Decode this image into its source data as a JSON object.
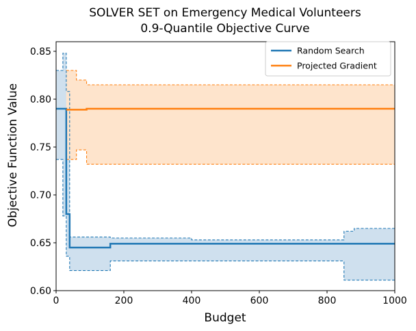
{
  "chart_data": {
    "type": "line",
    "title": "SOLVER SET on Emergency Medical Volunteers",
    "subtitle": "0.9-Quantile Objective Curve",
    "xlabel": "Budget",
    "ylabel": "Objective Function Value",
    "xlim": [
      0,
      1000
    ],
    "ylim": [
      0.6,
      0.86
    ],
    "xticks": [
      0,
      200,
      400,
      600,
      800,
      1000
    ],
    "yticks": [
      0.6,
      0.65,
      0.7,
      0.75,
      0.8,
      0.85
    ],
    "xtick_labels": [
      "0",
      "200",
      "400",
      "600",
      "800",
      "1000"
    ],
    "ytick_labels": [
      "0.60",
      "0.65",
      "0.70",
      "0.75",
      "0.80",
      "0.85"
    ],
    "grid": false,
    "legend_position": "top-right",
    "line_style": "step",
    "series": [
      {
        "name": "Random Search",
        "color": "#1f77b4",
        "fill": "#cfe0ee",
        "x": [
          0,
          30,
          40,
          160,
          1000
        ],
        "y": [
          0.79,
          0.68,
          0.645,
          0.649,
          0.649
        ],
        "ci_x": [
          0,
          20,
          30,
          40,
          160,
          400,
          850,
          880,
          1000
        ],
        "ci_upper": [
          0.83,
          0.848,
          0.808,
          0.656,
          0.655,
          0.653,
          0.662,
          0.665,
          0.665
        ],
        "ci_lower": [
          0.737,
          0.678,
          0.636,
          0.621,
          0.631,
          0.631,
          0.611,
          0.611,
          0.611
        ]
      },
      {
        "name": "Projected Gradient",
        "color": "#ff7f0e",
        "fill": "#fee4cc",
        "x": [
          30,
          60,
          90,
          1000
        ],
        "y": [
          0.789,
          0.789,
          0.79,
          0.79
        ],
        "ci_x": [
          30,
          60,
          90,
          1000
        ],
        "ci_upper": [
          0.83,
          0.82,
          0.815,
          0.815
        ],
        "ci_lower": [
          0.737,
          0.747,
          0.732,
          0.732
        ]
      }
    ]
  }
}
